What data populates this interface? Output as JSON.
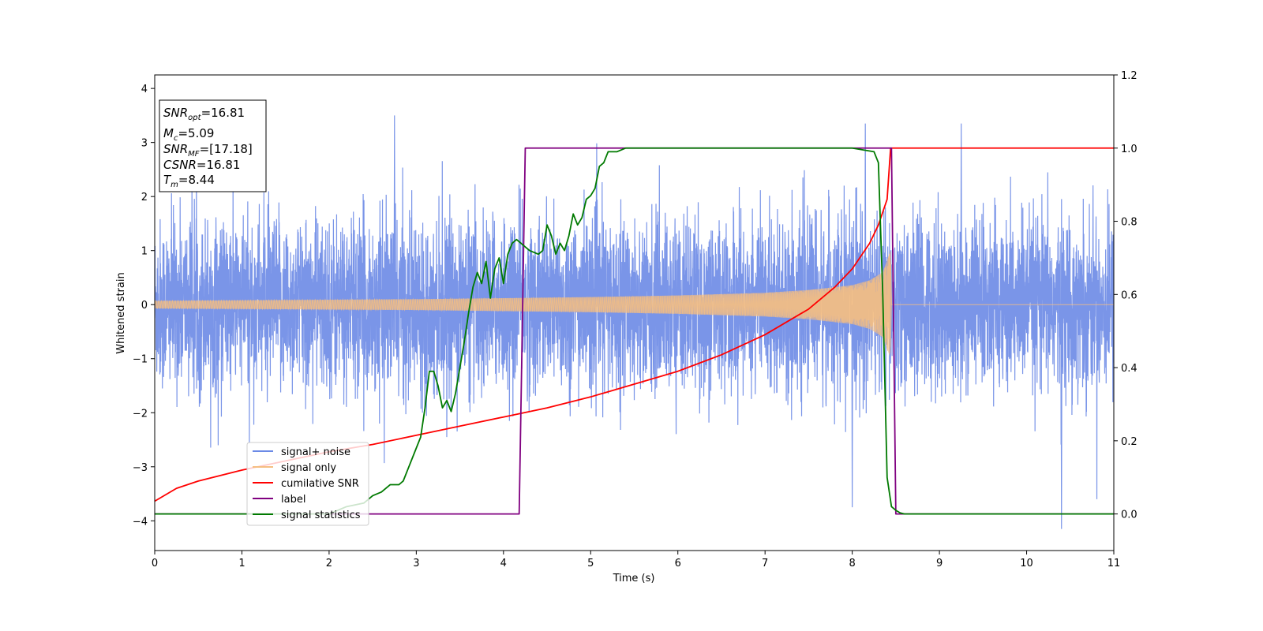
{
  "chart_data": {
    "type": "line",
    "xlabel": "Time (s)",
    "ylabel": "Whitened strain",
    "xlim": [
      0,
      11
    ],
    "ylim_left": [
      -4.55,
      4.25
    ],
    "ylim_right": [
      -0.1,
      1.2
    ],
    "x_ticks": [
      "0",
      "1",
      "2",
      "3",
      "4",
      "5",
      "6",
      "7",
      "8",
      "9",
      "10",
      "11"
    ],
    "y_left_ticks": [
      "−4",
      "−3",
      "−2",
      "−1",
      "0",
      "1",
      "2",
      "3",
      "4"
    ],
    "y_right_ticks": [
      "0.0",
      "0.2",
      "0.4",
      "0.6",
      "0.8",
      "1.0",
      "1.2"
    ],
    "grid": false,
    "legend_placement": "lower-left",
    "colors": {
      "signal_noise": "#6b8ae6",
      "signal_only": "#f5be82",
      "cumulative_snr": "#ff0000",
      "label": "#800080",
      "signal_statistics": "#007a00"
    },
    "annotation": {
      "snr_opt": {
        "base": "SNR",
        "sub": "opt",
        "value": "=16.81"
      },
      "mc": {
        "base": "M",
        "sub": "c",
        "value": "=5.09"
      },
      "snr_mf": {
        "base": "SNR",
        "sub": "MF",
        "value": "=[17.18]"
      },
      "csnr": {
        "base": "CSNR",
        "value": "=16.81"
      },
      "tm": {
        "base": "T",
        "sub": "m",
        "value": "=8.44"
      }
    },
    "series": [
      {
        "name": "signal+ noise",
        "axis": "left",
        "description_values": {
          "approx_range": [
            -4.15,
            3.5
          ],
          "duration_s": [
            0,
            11
          ],
          "extreme_points": [
            [
              2.75,
              3.5
            ],
            [
              8.15,
              3.35
            ],
            [
              9.25,
              3.35
            ],
            [
              10.4,
              -4.15
            ],
            [
              8.0,
              -3.75
            ]
          ]
        }
      },
      {
        "name": "signal only",
        "axis": "left",
        "envelope": {
          "x": [
            0,
            1,
            2,
            3,
            4,
            5,
            6,
            7,
            7.5,
            8,
            8.2,
            8.35,
            8.44,
            8.45,
            11
          ],
          "amplitude": [
            0.07,
            0.08,
            0.09,
            0.1,
            0.12,
            0.14,
            0.17,
            0.22,
            0.27,
            0.36,
            0.45,
            0.6,
            1.0,
            0,
            0
          ]
        }
      },
      {
        "name": "cumilative SNR",
        "axis": "right",
        "x": [
          0,
          0.25,
          0.5,
          1,
          1.5,
          2,
          2.5,
          3,
          3.5,
          4,
          4.5,
          5,
          5.5,
          6,
          6.5,
          7,
          7.5,
          7.8,
          8.0,
          8.2,
          8.3,
          8.4,
          8.44,
          8.46,
          11
        ],
        "y": [
          0.035,
          0.07,
          0.09,
          0.12,
          0.145,
          0.17,
          0.19,
          0.215,
          0.24,
          0.265,
          0.29,
          0.32,
          0.355,
          0.39,
          0.435,
          0.49,
          0.56,
          0.62,
          0.67,
          0.74,
          0.79,
          0.86,
          1.0,
          1.0,
          1.0
        ]
      },
      {
        "name": "label",
        "axis": "right",
        "x": [
          0,
          4.18,
          4.25,
          8.45,
          8.5,
          11
        ],
        "y": [
          0.0,
          0.0,
          1.0,
          1.0,
          0.0,
          0.0
        ]
      },
      {
        "name": "signal statistics",
        "axis": "right",
        "x": [
          0,
          0.5,
          1,
          1.5,
          2,
          2.2,
          2.4,
          2.5,
          2.6,
          2.7,
          2.8,
          2.85,
          2.9,
          3.0,
          3.05,
          3.1,
          3.15,
          3.2,
          3.25,
          3.3,
          3.35,
          3.4,
          3.45,
          3.5,
          3.55,
          3.6,
          3.65,
          3.7,
          3.75,
          3.8,
          3.85,
          3.9,
          3.95,
          4.0,
          4.05,
          4.1,
          4.15,
          4.2,
          4.25,
          4.3,
          4.4,
          4.45,
          4.5,
          4.55,
          4.6,
          4.65,
          4.7,
          4.75,
          4.8,
          4.85,
          4.9,
          4.95,
          5.0,
          5.05,
          5.1,
          5.15,
          5.2,
          5.3,
          5.4,
          5.6,
          6.0,
          6.5,
          7.0,
          7.5,
          8.0,
          8.25,
          8.3,
          8.35,
          8.4,
          8.45,
          8.5,
          8.55,
          8.6,
          8.7,
          9,
          10,
          11
        ],
        "y": [
          0.0,
          0.0,
          0.0,
          0.0,
          0.0,
          0.02,
          0.03,
          0.05,
          0.06,
          0.08,
          0.08,
          0.09,
          0.12,
          0.18,
          0.21,
          0.29,
          0.39,
          0.39,
          0.35,
          0.29,
          0.31,
          0.28,
          0.33,
          0.4,
          0.47,
          0.55,
          0.62,
          0.66,
          0.63,
          0.69,
          0.59,
          0.67,
          0.7,
          0.63,
          0.71,
          0.74,
          0.75,
          0.74,
          0.73,
          0.72,
          0.71,
          0.72,
          0.79,
          0.76,
          0.71,
          0.74,
          0.72,
          0.76,
          0.82,
          0.79,
          0.81,
          0.86,
          0.87,
          0.89,
          0.95,
          0.96,
          0.99,
          0.99,
          1.0,
          1.0,
          1.0,
          1.0,
          1.0,
          1.0,
          1.0,
          0.99,
          0.96,
          0.6,
          0.1,
          0.02,
          0.01,
          0.003,
          0.0,
          0.0,
          0.0,
          0.0,
          0.0
        ]
      }
    ]
  }
}
